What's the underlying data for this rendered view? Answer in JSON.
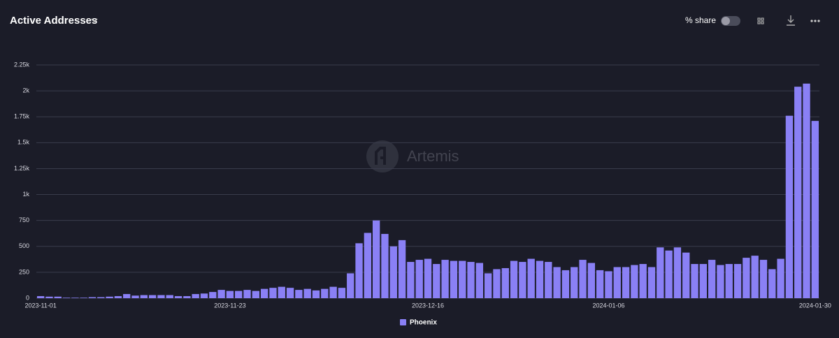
{
  "header": {
    "title": "Active Addresses",
    "share_toggle": "% share"
  },
  "watermark": "Artemis",
  "chart_data": {
    "type": "bar",
    "categories": [
      "2023-11-01",
      null,
      null,
      null,
      null,
      null,
      null,
      null,
      null,
      null,
      null,
      null,
      null,
      null,
      null,
      null,
      null,
      null,
      null,
      null,
      null,
      null,
      "2023-11-23",
      null,
      null,
      null,
      null,
      null,
      null,
      null,
      null,
      null,
      null,
      null,
      null,
      null,
      null,
      null,
      null,
      null,
      null,
      null,
      null,
      null,
      null,
      "2023-12-16",
      null,
      null,
      null,
      null,
      null,
      null,
      null,
      null,
      null,
      null,
      null,
      null,
      null,
      null,
      null,
      null,
      null,
      null,
      null,
      null,
      "2024-01-06",
      null,
      null,
      null,
      null,
      null,
      null,
      null,
      null,
      null,
      null,
      null,
      null,
      null,
      null,
      null,
      null,
      null,
      null,
      null,
      null,
      null,
      null,
      null,
      "2024-01-30"
    ],
    "series": [
      {
        "name": "Phoenix",
        "color": "#8a80f5",
        "values": [
          20,
          15,
          15,
          5,
          5,
          5,
          10,
          10,
          15,
          20,
          40,
          25,
          30,
          30,
          30,
          30,
          20,
          20,
          40,
          45,
          60,
          80,
          70,
          70,
          80,
          70,
          90,
          100,
          110,
          100,
          80,
          90,
          75,
          90,
          110,
          100,
          240,
          530,
          630,
          750,
          620,
          500,
          560,
          350,
          370,
          380,
          330,
          370,
          360,
          360,
          350,
          340,
          240,
          280,
          290,
          360,
          350,
          380,
          360,
          350,
          300,
          270,
          300,
          370,
          340,
          270,
          260,
          300,
          300,
          320,
          330,
          300,
          490,
          460,
          490,
          440,
          330,
          330,
          370,
          320,
          330,
          330,
          390,
          410,
          370,
          280,
          380,
          1760,
          2040,
          2070,
          1710
        ]
      }
    ],
    "ylim": [
      0,
      2250
    ],
    "yticks": [
      0,
      250,
      500,
      750,
      {
        "value": 1000,
        "label": "1k"
      },
      {
        "value": 1250,
        "label": "1.25k"
      },
      {
        "value": 1500,
        "label": "1.5k"
      },
      {
        "value": 1750,
        "label": "1.75k"
      },
      {
        "value": 2000,
        "label": "2k"
      },
      {
        "value": 2250,
        "label": "2.25k"
      }
    ],
    "grid": true
  }
}
